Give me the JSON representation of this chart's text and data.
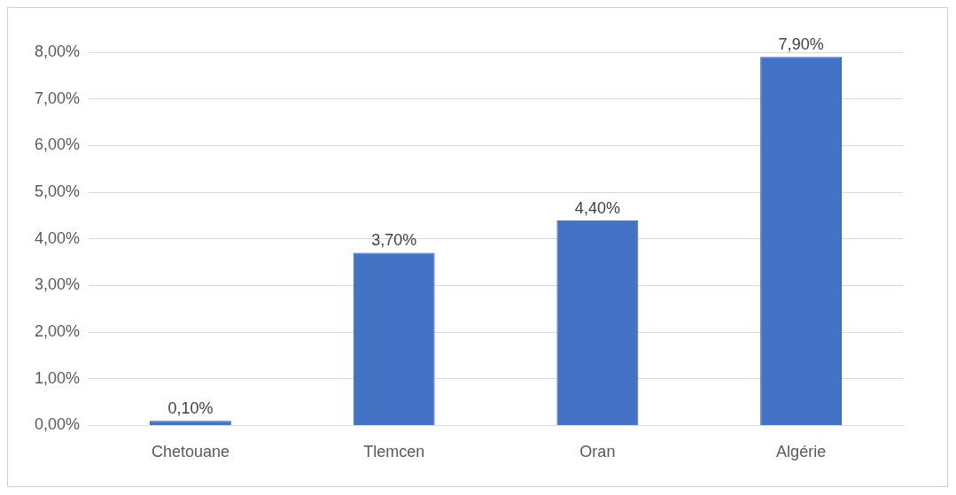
{
  "chart_data": {
    "type": "bar",
    "categories": [
      "Chetouane",
      "Tlemcen",
      "Oran",
      "Algérie"
    ],
    "values": [
      0.1,
      3.7,
      4.4,
      7.9
    ],
    "value_labels": [
      "0,10%",
      "3,70%",
      "4,40%",
      "7,90%"
    ],
    "color": "#4472c4",
    "ylim": [
      0,
      8
    ],
    "yticks": [
      {
        "value": 0,
        "label": "0,00%"
      },
      {
        "value": 1,
        "label": "1,00%"
      },
      {
        "value": 2,
        "label": "2,00%"
      },
      {
        "value": 3,
        "label": "3,00%"
      },
      {
        "value": 4,
        "label": "4,00%"
      },
      {
        "value": 5,
        "label": "5,00%"
      },
      {
        "value": 6,
        "label": "6,00%"
      },
      {
        "value": 7,
        "label": "7,00%"
      },
      {
        "value": 8,
        "label": "8,00%"
      }
    ],
    "grid": "y"
  }
}
